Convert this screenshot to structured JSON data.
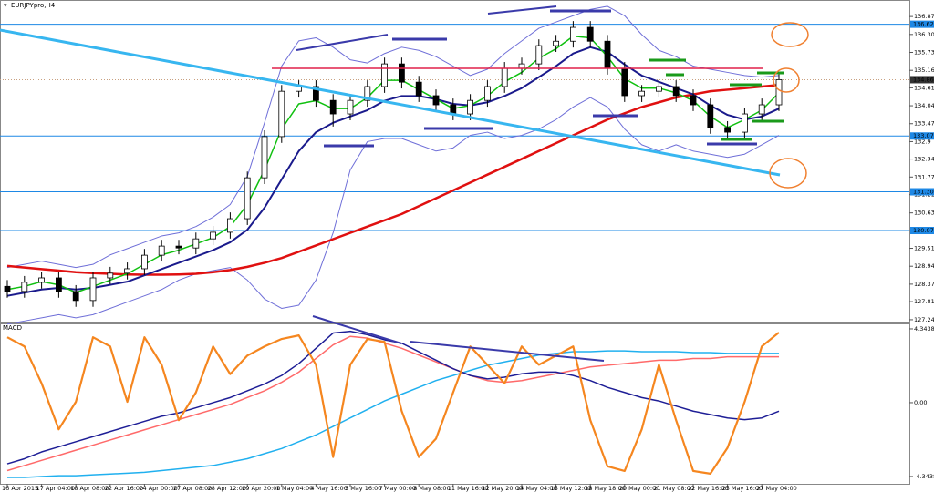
{
  "chart_data": [
    {
      "type": "candlestick",
      "title": "EURJPYpro,H4",
      "categories": [
        "16 Apr 2015",
        null,
        "17 Apr 04:00",
        null,
        "18 Apr 08:00",
        null,
        "22 Apr 16:00",
        null,
        "24 Apr 00:00",
        null,
        "27 Apr 08:00",
        null,
        "28 Apr 12:00",
        null,
        "29 Apr 20:00",
        null,
        "1 May 04:00",
        null,
        "4 May 16:00",
        null,
        "5 May 16:00",
        null,
        "7 May 00:00",
        null,
        "8 May 08:00",
        null,
        "11 May 16:00",
        null,
        "12 May 20:00",
        null,
        "14 May 04:00",
        null,
        "15 May 12:00",
        null,
        "18 May 18:00",
        null,
        "20 May 00:00",
        null,
        "21 May 08:00",
        null,
        "22 May 16:00",
        null,
        "25 May 16:00",
        null,
        "27 May 04:00",
        null
      ],
      "open": [
        128.3,
        128.14,
        128.43,
        128.57,
        128.14,
        127.85,
        128.57,
        128.72,
        128.86,
        129.29,
        129.58,
        129.52,
        129.81,
        130.02,
        130.45,
        131.75,
        133.06,
        134.5,
        134.65,
        134.21,
        133.78,
        134.21,
        134.65,
        135.37,
        134.79,
        134.36,
        134.07,
        133.78,
        134.21,
        134.65,
        135.23,
        135.37,
        135.95,
        136.09,
        136.53,
        136.09,
        135.23,
        134.36,
        134.5,
        134.65,
        134.36,
        134.07,
        133.35,
        133.2,
        133.78,
        134.07
      ],
      "high": [
        128.5,
        128.63,
        128.77,
        128.77,
        128.34,
        128.77,
        128.92,
        129.06,
        129.49,
        129.78,
        129.78,
        130.01,
        130.22,
        130.65,
        131.95,
        133.26,
        134.7,
        134.85,
        134.85,
        134.41,
        134.41,
        134.85,
        135.57,
        135.57,
        134.99,
        134.56,
        134.27,
        134.41,
        134.85,
        135.43,
        135.57,
        136.15,
        136.29,
        136.73,
        136.73,
        136.29,
        135.43,
        134.7,
        134.85,
        134.85,
        134.56,
        134.27,
        133.55,
        133.98,
        134.27,
        135.07
      ],
      "low": [
        127.94,
        127.94,
        128.23,
        127.94,
        127.65,
        127.65,
        128.37,
        128.52,
        128.66,
        129.09,
        129.32,
        129.32,
        129.61,
        129.82,
        130.25,
        131.55,
        132.86,
        134.3,
        134.01,
        133.38,
        133.58,
        134.01,
        134.45,
        134.59,
        134.16,
        133.87,
        133.58,
        133.58,
        134.01,
        134.45,
        135.03,
        135.17,
        135.75,
        135.89,
        135.89,
        135.03,
        134.16,
        134.16,
        134.3,
        134.16,
        133.87,
        133.15,
        133.0,
        133.0,
        133.58,
        133.87
      ],
      "close": [
        128.14,
        128.43,
        128.57,
        128.14,
        127.85,
        128.57,
        128.72,
        128.86,
        129.29,
        129.58,
        129.52,
        129.81,
        130.02,
        130.45,
        131.75,
        133.06,
        134.5,
        134.65,
        134.21,
        133.78,
        134.21,
        134.65,
        135.37,
        134.79,
        134.36,
        134.07,
        133.78,
        134.21,
        134.65,
        135.23,
        135.37,
        135.95,
        136.09,
        136.53,
        136.09,
        135.23,
        134.36,
        134.5,
        134.65,
        134.36,
        134.07,
        133.35,
        133.2,
        133.78,
        134.07,
        134.87
      ],
      "overlays": [
        {
          "color": "#6f6fd8",
          "width": 1,
          "values": [
            128.9,
            129.0,
            129.1,
            129.0,
            128.9,
            129.0,
            129.3,
            129.5,
            129.7,
            129.9,
            130.0,
            130.2,
            130.5,
            130.9,
            131.8,
            133.5,
            135.3,
            136.1,
            136.2,
            135.9,
            135.5,
            135.4,
            135.7,
            135.9,
            135.8,
            135.6,
            135.3,
            135.0,
            135.2,
            135.7,
            136.1,
            136.5,
            136.7,
            136.9,
            137.1,
            137.2,
            136.9,
            136.3,
            135.8,
            135.6,
            135.3,
            135.2,
            135.1,
            135.0,
            134.95,
            135.0
          ]
        },
        {
          "color": "#6f6fd8",
          "width": 1,
          "values": [
            127.1,
            127.2,
            127.3,
            127.4,
            127.3,
            127.4,
            127.6,
            127.8,
            128.0,
            128.2,
            128.5,
            128.7,
            128.8,
            128.9,
            128.5,
            127.9,
            127.6,
            127.7,
            128.5,
            130.0,
            132.0,
            132.9,
            133.0,
            133.0,
            132.8,
            132.6,
            132.7,
            133.1,
            133.2,
            133.0,
            133.1,
            133.3,
            133.6,
            134.0,
            134.3,
            134.0,
            133.3,
            132.8,
            132.6,
            132.8,
            132.6,
            132.5,
            132.4,
            132.5,
            132.8,
            133.1
          ]
        },
        {
          "color": "#e01010",
          "width": 2.5,
          "values": [
            128.95,
            128.9,
            128.85,
            128.8,
            128.75,
            128.72,
            128.7,
            128.68,
            128.67,
            128.67,
            128.68,
            128.7,
            128.75,
            128.82,
            128.92,
            129.05,
            129.2,
            129.4,
            129.6,
            129.8,
            130.0,
            130.2,
            130.4,
            130.6,
            130.85,
            131.1,
            131.35,
            131.6,
            131.85,
            132.1,
            132.35,
            132.6,
            132.85,
            133.1,
            133.35,
            133.6,
            133.8,
            134.0,
            134.15,
            134.3,
            134.4,
            134.5,
            134.55,
            134.6,
            134.65,
            134.7
          ]
        },
        {
          "color": "#1a1a8c",
          "width": 2,
          "values": [
            128.0,
            128.1,
            128.2,
            128.25,
            128.2,
            128.25,
            128.35,
            128.45,
            128.65,
            128.85,
            129.05,
            129.25,
            129.45,
            129.7,
            130.1,
            130.8,
            131.7,
            132.6,
            133.2,
            133.5,
            133.7,
            133.9,
            134.2,
            134.35,
            134.35,
            134.25,
            134.1,
            134.05,
            134.15,
            134.35,
            134.6,
            134.95,
            135.3,
            135.7,
            135.9,
            135.75,
            135.35,
            135.0,
            134.8,
            134.6,
            134.4,
            134.05,
            133.75,
            133.6,
            133.7,
            133.95
          ]
        },
        {
          "color": "#10c010",
          "width": 1.5,
          "values": [
            128.2,
            128.3,
            128.45,
            128.35,
            128.1,
            128.3,
            128.5,
            128.7,
            129.0,
            129.3,
            129.45,
            129.65,
            129.85,
            130.2,
            130.9,
            132.0,
            133.3,
            134.1,
            134.2,
            133.95,
            133.95,
            134.3,
            134.85,
            134.85,
            134.55,
            134.25,
            133.95,
            134.05,
            134.35,
            134.8,
            135.1,
            135.55,
            135.85,
            136.25,
            136.2,
            135.6,
            134.9,
            134.6,
            134.6,
            134.45,
            134.2,
            133.7,
            133.35,
            133.6,
            133.9,
            134.45
          ]
        }
      ],
      "levels": [
        136.629,
        133.079,
        131.305,
        130.075
      ],
      "level_color": "#1e88e5",
      "last_price": 134.868,
      "ylim": [
        127.18,
        137.4
      ],
      "yticks": [
        136.875,
        136.305,
        135.735,
        135.165,
        134.61,
        134.04,
        133.47,
        132.9,
        132.345,
        131.775,
        131.215,
        130.635,
        130.065,
        129.51,
        128.94,
        128.37,
        127.815,
        127.24
      ]
    },
    {
      "type": "line",
      "title": "MACD",
      "series": [
        {
          "color": "#20b0ef",
          "values": [
            -4.4,
            -4.4,
            -4.35,
            -4.3,
            -4.3,
            -4.25,
            -4.2,
            -4.15,
            -4.1,
            -4.0,
            -3.9,
            -3.8,
            -3.7,
            -3.5,
            -3.3,
            -3.0,
            -2.7,
            -2.3,
            -1.9,
            -1.4,
            -0.9,
            -0.4,
            0.1,
            0.5,
            0.9,
            1.3,
            1.6,
            1.9,
            2.2,
            2.4,
            2.6,
            2.8,
            2.9,
            3.0,
            3.0,
            3.05,
            3.05,
            3.0,
            3.0,
            3.0,
            2.95,
            2.95,
            2.9,
            2.9,
            2.9,
            2.9
          ]
        },
        {
          "color": "#ff6a6a",
          "values": [
            -4.0,
            -3.7,
            -3.4,
            -3.1,
            -2.8,
            -2.5,
            -2.2,
            -1.9,
            -1.6,
            -1.3,
            -1.0,
            -0.7,
            -0.4,
            -0.1,
            0.3,
            0.7,
            1.2,
            1.8,
            2.6,
            3.4,
            3.9,
            3.8,
            3.5,
            3.2,
            2.8,
            2.4,
            2.0,
            1.6,
            1.3,
            1.2,
            1.3,
            1.5,
            1.7,
            1.9,
            2.1,
            2.2,
            2.3,
            2.4,
            2.5,
            2.5,
            2.6,
            2.6,
            2.7,
            2.7,
            2.7,
            2.7
          ]
        },
        {
          "color": "#1e1e96",
          "values": [
            -3.6,
            -3.3,
            -2.9,
            -2.6,
            -2.3,
            -2.0,
            -1.7,
            -1.4,
            -1.1,
            -0.8,
            -0.6,
            -0.3,
            0.0,
            0.3,
            0.7,
            1.1,
            1.6,
            2.3,
            3.2,
            4.1,
            4.2,
            4.0,
            3.7,
            3.5,
            3.0,
            2.5,
            2.0,
            1.6,
            1.4,
            1.5,
            1.7,
            1.8,
            1.8,
            1.6,
            1.3,
            0.9,
            0.6,
            0.3,
            0.1,
            -0.2,
            -0.5,
            -0.7,
            -0.9,
            -1.0,
            -0.9,
            -0.5
          ]
        },
        {
          "color": "#f5861f",
          "values": [
            3.85,
            3.31,
            1.14,
            -1.57,
            0.05,
            3.85,
            3.31,
            0.05,
            3.85,
            2.23,
            -1.03,
            0.6,
            3.31,
            1.68,
            2.77,
            3.31,
            3.75,
            3.96,
            2.23,
            -3.2,
            2.23,
            3.75,
            3.58,
            -0.49,
            -3.2,
            -2.12,
            0.6,
            3.31,
            2.23,
            1.14,
            3.31,
            2.23,
            2.77,
            3.31,
            -1.03,
            -3.75,
            -4.02,
            -1.57,
            2.23,
            -1.03,
            -4.02,
            -4.18,
            -2.66,
            0.05,
            3.31,
            4.13
          ]
        }
      ],
      "ylim": [
        -4.83,
        4.61
      ],
      "yticks": [
        4.3438,
        {
          "value": 0,
          "label": "0.00"
        },
        -4.3438
      ]
    }
  ]
}
